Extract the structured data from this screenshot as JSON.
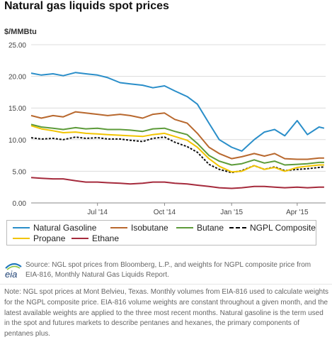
{
  "title": "Natural gas liquids spot prices",
  "unit": "$/MMBtu",
  "legend": {
    "items": [
      {
        "label": "Natural Gasoline",
        "color": "#2a8ec9"
      },
      {
        "label": "Isobutane",
        "color": "#b8682e"
      },
      {
        "label": "Butane",
        "color": "#5d9b3a"
      },
      {
        "label": "NGPL Composite",
        "color": "#111111",
        "dashed": true
      },
      {
        "label": "Propane",
        "color": "#f2c400"
      },
      {
        "label": "Ethane",
        "color": "#a52a3c"
      }
    ]
  },
  "source_text": "Source: NGL spot prices from Bloomberg, L.P., and weights for NGPL composite price from EIA-816, Monthly Natural Gas Liquids Report.",
  "note_text": "Note: NGL spot prices at Mont Belvieu, Texas. Monthly volumes from EIA-816 used to calculate weights for the NGPL composite price. EIA-816 volume weights are constant throughout a given month, and the latest available weights are applied to the three most recent months. Natural gasoline is the term used in the spot and futures markets to describe pentanes and hexanes, the primary components of pentanes plus.",
  "logo_text": "eia",
  "chart_data": {
    "type": "line",
    "x_unit": "month",
    "xlim": [
      "2014-04-01",
      "2015-05-10"
    ],
    "ylim": [
      0,
      25
    ],
    "yticks": [
      0,
      5,
      10,
      15,
      20,
      25
    ],
    "ytick_labels": [
      "0.00",
      "5.00",
      "10.00",
      "15.00",
      "20.00",
      "25.00"
    ],
    "xticks": [
      {
        "label": "Jul '14",
        "x": "2014-07-01"
      },
      {
        "label": "Oct '14",
        "x": "2014-10-01"
      },
      {
        "label": "Jan '15",
        "x": "2015-01-01"
      },
      {
        "label": "Apr '15",
        "x": "2015-04-01"
      }
    ],
    "grid": "horizontal",
    "series": [
      {
        "name": "Natural Gasoline",
        "color": "#2a8ec9",
        "x": [
          "2014-04-01",
          "2014-04-15",
          "2014-05-01",
          "2014-05-15",
          "2014-06-01",
          "2014-06-15",
          "2014-07-01",
          "2014-07-15",
          "2014-08-01",
          "2014-08-15",
          "2014-09-01",
          "2014-09-15",
          "2014-10-01",
          "2014-10-15",
          "2014-11-01",
          "2014-11-15",
          "2014-12-01",
          "2014-12-15",
          "2015-01-01",
          "2015-01-15",
          "2015-02-01",
          "2015-02-15",
          "2015-03-01",
          "2015-03-15",
          "2015-04-01",
          "2015-04-15",
          "2015-05-01",
          "2015-05-08"
        ],
        "y": [
          20.5,
          20.2,
          20.4,
          20.1,
          20.6,
          20.4,
          20.2,
          19.8,
          19.0,
          18.8,
          18.6,
          18.2,
          18.5,
          17.7,
          16.8,
          15.6,
          12.6,
          10.0,
          8.8,
          8.2,
          10.0,
          11.2,
          11.6,
          10.6,
          13.0,
          10.8,
          12.0,
          11.8
        ]
      },
      {
        "name": "Isobutane",
        "color": "#b8682e",
        "x": [
          "2014-04-01",
          "2014-04-15",
          "2014-05-01",
          "2014-05-15",
          "2014-06-01",
          "2014-06-15",
          "2014-07-01",
          "2014-07-15",
          "2014-08-01",
          "2014-08-15",
          "2014-09-01",
          "2014-09-15",
          "2014-10-01",
          "2014-10-15",
          "2014-11-01",
          "2014-11-15",
          "2014-12-01",
          "2014-12-15",
          "2015-01-01",
          "2015-01-15",
          "2015-02-01",
          "2015-02-15",
          "2015-03-01",
          "2015-03-15",
          "2015-04-01",
          "2015-04-15",
          "2015-05-01",
          "2015-05-08"
        ],
        "y": [
          13.8,
          13.4,
          13.8,
          13.6,
          14.4,
          14.2,
          14.0,
          13.8,
          14.0,
          13.8,
          13.4,
          14.0,
          14.2,
          13.2,
          12.6,
          11.0,
          8.8,
          7.8,
          7.0,
          7.3,
          7.8,
          7.4,
          7.8,
          7.0,
          6.9,
          6.9,
          7.1,
          7.1
        ]
      },
      {
        "name": "Butane",
        "color": "#5d9b3a",
        "x": [
          "2014-04-01",
          "2014-04-15",
          "2014-05-01",
          "2014-05-15",
          "2014-06-01",
          "2014-06-15",
          "2014-07-01",
          "2014-07-15",
          "2014-08-01",
          "2014-08-15",
          "2014-09-01",
          "2014-09-15",
          "2014-10-01",
          "2014-10-15",
          "2014-11-01",
          "2014-11-15",
          "2014-12-01",
          "2014-12-15",
          "2015-01-01",
          "2015-01-15",
          "2015-02-01",
          "2015-02-15",
          "2015-03-01",
          "2015-03-15",
          "2015-04-01",
          "2015-04-15",
          "2015-05-01",
          "2015-05-08"
        ],
        "y": [
          12.4,
          12.0,
          11.8,
          11.6,
          11.9,
          11.7,
          11.8,
          11.6,
          11.6,
          11.5,
          11.3,
          11.7,
          11.8,
          11.3,
          10.8,
          9.4,
          7.5,
          6.6,
          6.0,
          6.2,
          6.8,
          6.3,
          6.6,
          6.0,
          6.1,
          6.2,
          6.4,
          6.4
        ]
      },
      {
        "name": "NGPL Composite",
        "color": "#111111",
        "dashed": true,
        "x": [
          "2014-04-01",
          "2014-04-15",
          "2014-05-01",
          "2014-05-15",
          "2014-06-01",
          "2014-06-15",
          "2014-07-01",
          "2014-07-15",
          "2014-08-01",
          "2014-08-15",
          "2014-09-01",
          "2014-09-15",
          "2014-10-01",
          "2014-10-15",
          "2014-11-01",
          "2014-11-15",
          "2014-12-01",
          "2014-12-15",
          "2015-01-01",
          "2015-01-15",
          "2015-02-01",
          "2015-02-15",
          "2015-03-01",
          "2015-03-15",
          "2015-04-01",
          "2015-04-15",
          "2015-05-01",
          "2015-05-08"
        ],
        "y": [
          10.3,
          10.1,
          10.2,
          10.0,
          10.4,
          10.2,
          10.3,
          10.1,
          10.1,
          9.9,
          9.7,
          10.2,
          10.4,
          9.6,
          8.9,
          8.0,
          6.1,
          5.3,
          4.8,
          5.1,
          5.9,
          5.3,
          5.7,
          5.1,
          5.3,
          5.4,
          5.6,
          5.7
        ]
      },
      {
        "name": "Propane",
        "color": "#f2c400",
        "x": [
          "2014-04-01",
          "2014-04-15",
          "2014-05-01",
          "2014-05-15",
          "2014-06-01",
          "2014-06-15",
          "2014-07-01",
          "2014-07-15",
          "2014-08-01",
          "2014-08-15",
          "2014-09-01",
          "2014-09-15",
          "2014-10-01",
          "2014-10-15",
          "2014-11-01",
          "2014-11-15",
          "2014-12-01",
          "2014-12-15",
          "2015-01-01",
          "2015-01-15",
          "2015-02-01",
          "2015-02-15",
          "2015-03-01",
          "2015-03-15",
          "2015-04-01",
          "2015-04-15",
          "2015-05-01",
          "2015-05-08"
        ],
        "y": [
          12.2,
          11.7,
          11.4,
          11.1,
          11.2,
          11.0,
          10.9,
          10.8,
          10.7,
          10.6,
          10.5,
          10.8,
          11.0,
          10.5,
          9.9,
          8.8,
          7.0,
          5.8,
          4.9,
          5.0,
          5.9,
          5.3,
          5.6,
          5.0,
          5.6,
          5.8,
          6.0,
          6.0
        ]
      },
      {
        "name": "Ethane",
        "color": "#a52a3c",
        "x": [
          "2014-04-01",
          "2014-04-15",
          "2014-05-01",
          "2014-05-15",
          "2014-06-01",
          "2014-06-15",
          "2014-07-01",
          "2014-07-15",
          "2014-08-01",
          "2014-08-15",
          "2014-09-01",
          "2014-09-15",
          "2014-10-01",
          "2014-10-15",
          "2014-11-01",
          "2014-11-15",
          "2014-12-01",
          "2014-12-15",
          "2015-01-01",
          "2015-01-15",
          "2015-02-01",
          "2015-02-15",
          "2015-03-01",
          "2015-03-15",
          "2015-04-01",
          "2015-04-15",
          "2015-05-01",
          "2015-05-08"
        ],
        "y": [
          4.0,
          3.9,
          3.8,
          3.8,
          3.5,
          3.3,
          3.3,
          3.2,
          3.1,
          3.0,
          3.1,
          3.3,
          3.3,
          3.1,
          3.0,
          2.8,
          2.6,
          2.4,
          2.3,
          2.4,
          2.6,
          2.6,
          2.5,
          2.4,
          2.5,
          2.4,
          2.5,
          2.5
        ]
      }
    ]
  }
}
